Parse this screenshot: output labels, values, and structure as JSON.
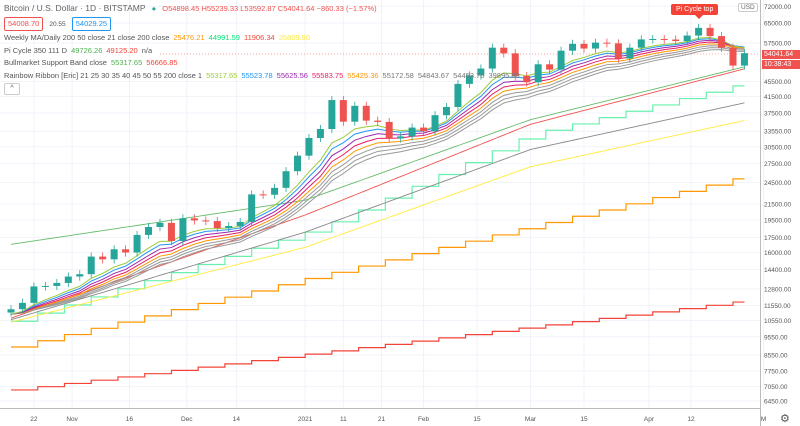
{
  "header": {
    "title": "Bitcoin / U.S. Dollar · 1D · BITSTAMP",
    "ohlc": "O54898.45 H55239.33 L53592.87 C54041.64 −860.33 (−1.57%)",
    "sell": "54008.70",
    "spread": "20.55",
    "buy": "54029.25"
  },
  "indicators": [
    {
      "name": "Weekly MA/Daily 200 50 close 21 close 200 close",
      "values": [
        {
          "v": "25476.21",
          "c": "#ff9800"
        },
        {
          "v": "44991.59",
          "c": "#00e676"
        },
        {
          "v": "11906.34",
          "c": "#f44336"
        },
        {
          "v": "35809.90",
          "c": "#ffeb3b"
        }
      ]
    },
    {
      "name": "Pi Cycle 350 111 D",
      "values": [
        {
          "v": "49726.26",
          "c": "#4caf50"
        },
        {
          "v": "49125.20",
          "c": "#f44336"
        },
        {
          "v": "n/a",
          "c": "#555"
        }
      ]
    },
    {
      "name": "Bullmarket Support Band close",
      "values": [
        {
          "v": "55317.65",
          "c": "#4caf50"
        },
        {
          "v": "56666.85",
          "c": "#f44336"
        }
      ]
    },
    {
      "name": "Rainbow Ribbon [Eric] 21 25 30 35 40 45 50 55 200 close 1",
      "values": [
        {
          "v": "55317.65",
          "c": "#9ccc3a"
        },
        {
          "v": "55523.78",
          "c": "#2196f3"
        },
        {
          "v": "55625.56",
          "c": "#9c27b0"
        },
        {
          "v": "55583.75",
          "c": "#e91e63"
        },
        {
          "v": "55425.36",
          "c": "#ff9800"
        },
        {
          "v": "55172.58",
          "c": "#777"
        },
        {
          "v": "54843.67",
          "c": "#777"
        },
        {
          "v": "54453.76",
          "c": "#777"
        },
        {
          "v": "39895.80",
          "c": "#777"
        }
      ]
    }
  ],
  "collapse_icon": "^",
  "pi_tag": "Pi Cycle top",
  "currency": "USD",
  "last_price": "54041.64",
  "countdown": "10:38:43",
  "colors": {
    "up": "#26a69a",
    "down": "#ef5350"
  },
  "chart_data": {
    "type": "candlestick",
    "scale": "log",
    "interval_days": 3,
    "start": "2020-10-16",
    "closes": [
      11300,
      11750,
      12990,
      13030,
      13270,
      13800,
      14000,
      15590,
      15330,
      16300,
      15980,
      17800,
      18680,
      19160,
      17150,
      19700,
      19440,
      19370,
      18550,
      18800,
      19270,
      22800,
      22750,
      23730,
      26270,
      28890,
      32190,
      34000,
      40580,
      35560,
      39180,
      35790,
      35510,
      32090,
      32500,
      34300,
      33520,
      37000,
      38900,
      44800,
      47170,
      49200,
      55900,
      54000,
      47000,
      45240,
      50500,
      48880,
      54880,
      57230,
      55600,
      57650,
      57400,
      52300,
      55900,
      58800,
      58950,
      58750,
      58200,
      60200,
      63100,
      60000,
      55900,
      50100,
      54041.64
    ],
    "ribbon_periods": [
      21,
      25,
      30,
      35,
      40,
      45,
      50,
      55
    ],
    "ribbon_colors": [
      "#9ccc3a",
      "#2196f3",
      "#9c27b0",
      "#e91e63",
      "#ff9800",
      "#999",
      "#999",
      "#999"
    ],
    "lines": [
      {
        "name": "weekly-200-ma",
        "color": "#ff9800",
        "step": 7,
        "points": [
          [
            0,
            8970
          ],
          [
            192,
            25476
          ]
        ]
      },
      {
        "name": "weekly-ma-red",
        "color": "#f44336",
        "step": 7,
        "points": [
          [
            0,
            6900
          ],
          [
            192,
            11906
          ]
        ]
      },
      {
        "name": "weekly-ma-mint",
        "color": "#69f0ae",
        "step": 7,
        "points": [
          [
            0,
            10500
          ],
          [
            80,
            18500
          ],
          [
            136,
            33000
          ],
          [
            192,
            44991
          ]
        ]
      },
      {
        "name": "ma-yellow",
        "color": "#ffeb3b",
        "step": 0,
        "points": [
          [
            0,
            10440
          ],
          [
            77,
            16500
          ],
          [
            136,
            27000
          ],
          [
            192,
            35809
          ]
        ]
      },
      {
        "name": "ma-200-gray",
        "color": "#888",
        "step": 0,
        "points": [
          [
            0,
            10600
          ],
          [
            77,
            18100
          ],
          [
            136,
            30000
          ],
          [
            192,
            39895
          ]
        ]
      },
      {
        "name": "pi-cycle-350x2",
        "color": "#66bb6a",
        "step": 0,
        "points": [
          [
            0,
            16800
          ],
          [
            77,
            22000
          ],
          [
            136,
            36000
          ],
          [
            192,
            49726
          ]
        ]
      },
      {
        "name": "pi-cycle-111",
        "color": "#ef5350",
        "step": 0,
        "points": [
          [
            0,
            10700
          ],
          [
            77,
            20100
          ],
          [
            136,
            35000
          ],
          [
            192,
            49125
          ]
        ]
      }
    ],
    "price_ticks": [
      "72000.00",
      "65000.00",
      "57500.00",
      "45500.00",
      "41500.00",
      "37500.00",
      "33550.00",
      "30500.00",
      "27500.00",
      "24500.00",
      "21500.00",
      "19500.00",
      "17500.00",
      "16000.00",
      "14400.00",
      "12800.00",
      "11550.00",
      "10550.00",
      "9550.00",
      "8550.00",
      "7750.00",
      "7050.00",
      "6450.00"
    ],
    "time_ticks": [
      {
        "d": 6,
        "label": "22"
      },
      {
        "d": 16,
        "label": "Nov"
      },
      {
        "d": 31,
        "label": "16"
      },
      {
        "d": 46,
        "label": "Dec"
      },
      {
        "d": 59,
        "label": "14"
      },
      {
        "d": 77,
        "label": "2021"
      },
      {
        "d": 87,
        "label": "11"
      },
      {
        "d": 97,
        "label": "21"
      },
      {
        "d": 108,
        "label": "Feb"
      },
      {
        "d": 122,
        "label": "15"
      },
      {
        "d": 136,
        "label": "Mar"
      },
      {
        "d": 150,
        "label": "15"
      },
      {
        "d": 167,
        "label": "Apr"
      },
      {
        "d": 178,
        "label": "12"
      },
      {
        "d": 197,
        "label": "M"
      }
    ]
  }
}
